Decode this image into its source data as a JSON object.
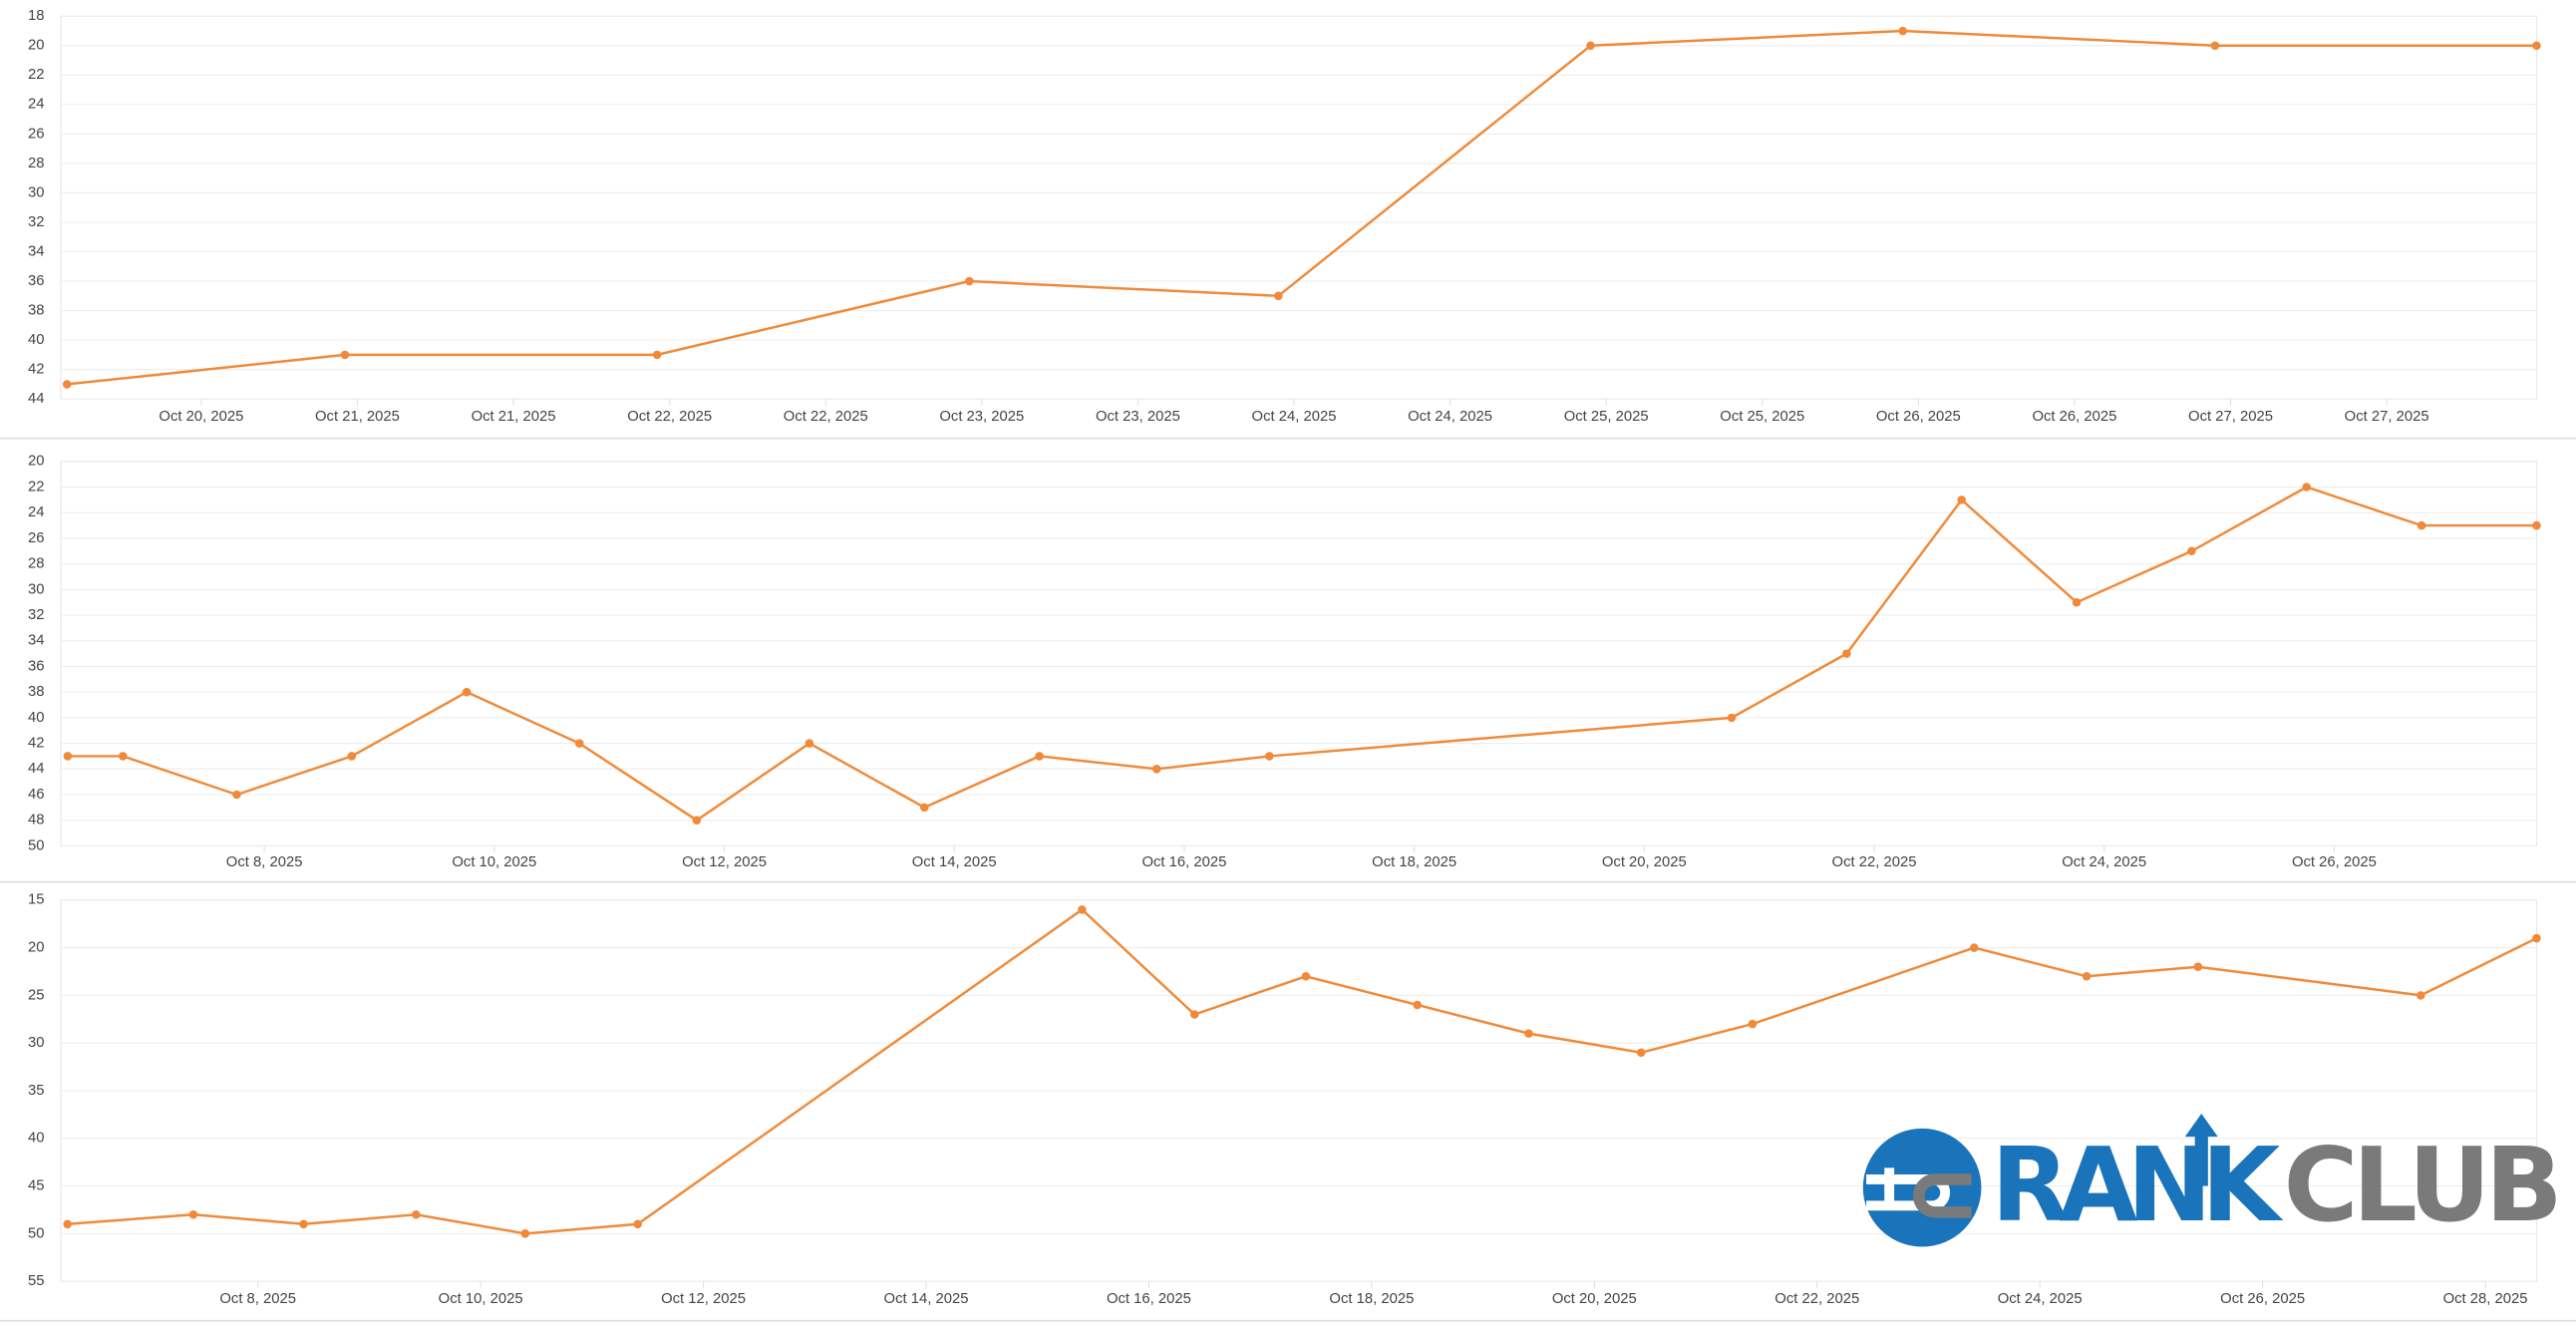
{
  "chart_data": [
    {
      "type": "line",
      "color": "#f08a3a",
      "y_inverted": true,
      "grid": true,
      "x": [
        19.57,
        20.46,
        21.46,
        22.46,
        23.45,
        24.45,
        25.45,
        26.45,
        27.48
      ],
      "values": [
        43,
        41,
        41,
        36,
        37,
        20,
        19,
        20,
        20
      ],
      "xlim": [
        19.55,
        27.48
      ],
      "ylim": [
        18,
        44
      ],
      "yticks": [
        18,
        20,
        22,
        24,
        26,
        28,
        30,
        32,
        34,
        36,
        38,
        40,
        42,
        44
      ],
      "xticks": [
        {
          "value": 20,
          "label": "Oct 20, 2025"
        },
        {
          "value": 20.5,
          "label": "Oct 21, 2025"
        },
        {
          "value": 21,
          "label": "Oct 21, 2025"
        },
        {
          "value": 21.5,
          "label": "Oct 22, 2025"
        },
        {
          "value": 22,
          "label": "Oct 22, 2025"
        },
        {
          "value": 22.5,
          "label": "Oct 23, 2025"
        },
        {
          "value": 23,
          "label": "Oct 23, 2025"
        },
        {
          "value": 23.5,
          "label": "Oct 24, 2025"
        },
        {
          "value": 24,
          "label": "Oct 24, 2025"
        },
        {
          "value": 24.5,
          "label": "Oct 25, 2025"
        },
        {
          "value": 25,
          "label": "Oct 25, 2025"
        },
        {
          "value": 25.5,
          "label": "Oct 26, 2025"
        },
        {
          "value": 26,
          "label": "Oct 26, 2025"
        },
        {
          "value": 26.5,
          "label": "Oct 27, 2025"
        },
        {
          "value": 27,
          "label": "Oct 27, 2025"
        }
      ]
    },
    {
      "type": "line",
      "color": "#f08a3a",
      "y_inverted": true,
      "grid": true,
      "x": [
        6.29,
        6.77,
        7.76,
        8.76,
        9.76,
        10.74,
        11.76,
        12.74,
        13.74,
        14.74,
        15.76,
        16.74,
        20.76,
        21.76,
        22.76,
        23.76,
        24.76,
        25.76,
        26.76,
        27.76
      ],
      "values": [
        43,
        43,
        46,
        43,
        38,
        42,
        48,
        42,
        47,
        43,
        44,
        43,
        40,
        35,
        23,
        31,
        27,
        22,
        25,
        25
      ],
      "xlim": [
        6.23,
        27.76
      ],
      "ylim": [
        20,
        50
      ],
      "yticks": [
        20,
        22,
        24,
        26,
        28,
        30,
        32,
        34,
        36,
        38,
        40,
        42,
        44,
        46,
        48,
        50
      ],
      "xticks": [
        {
          "value": 8,
          "label": "Oct 8, 2025"
        },
        {
          "value": 10,
          "label": "Oct 10, 2025"
        },
        {
          "value": 12,
          "label": "Oct 12, 2025"
        },
        {
          "value": 14,
          "label": "Oct 14, 2025"
        },
        {
          "value": 16,
          "label": "Oct 16, 2025"
        },
        {
          "value": 18,
          "label": "Oct 18, 2025"
        },
        {
          "value": 20,
          "label": "Oct 20, 2025"
        },
        {
          "value": 22,
          "label": "Oct 22, 2025"
        },
        {
          "value": 24,
          "label": "Oct 24, 2025"
        },
        {
          "value": 26,
          "label": "Oct 26, 2025"
        }
      ]
    },
    {
      "type": "line",
      "color": "#f08a3a",
      "y_inverted": true,
      "grid": true,
      "x": [
        6.29,
        7.42,
        8.41,
        9.42,
        10.4,
        11.41,
        15.4,
        16.41,
        17.41,
        18.41,
        19.41,
        20.42,
        21.42,
        23.41,
        24.42,
        25.42,
        27.42,
        28.46
      ],
      "values": [
        49,
        48,
        49,
        48,
        50,
        49,
        16,
        27,
        23,
        26,
        29,
        31,
        28,
        20,
        23,
        22,
        25,
        19
      ],
      "xlim": [
        6.23,
        28.46
      ],
      "ylim": [
        15,
        55
      ],
      "yticks": [
        15,
        20,
        25,
        30,
        35,
        40,
        45,
        50,
        55
      ],
      "xticks": [
        {
          "value": 8,
          "label": "Oct 8, 2025"
        },
        {
          "value": 10,
          "label": "Oct 10, 2025"
        },
        {
          "value": 12,
          "label": "Oct 12, 2025"
        },
        {
          "value": 14,
          "label": "Oct 14, 2025"
        },
        {
          "value": 16,
          "label": "Oct 16, 2025"
        },
        {
          "value": 18,
          "label": "Oct 18, 2025"
        },
        {
          "value": 20,
          "label": "Oct 20, 2025"
        },
        {
          "value": 22,
          "label": "Oct 22, 2025"
        },
        {
          "value": 24,
          "label": "Oct 24, 2025"
        },
        {
          "value": 26,
          "label": "Oct 26, 2025"
        },
        {
          "value": 28,
          "label": "Oct 28, 2025"
        }
      ]
    }
  ],
  "logo": {
    "left": "RANK",
    "right": "CLUB"
  }
}
